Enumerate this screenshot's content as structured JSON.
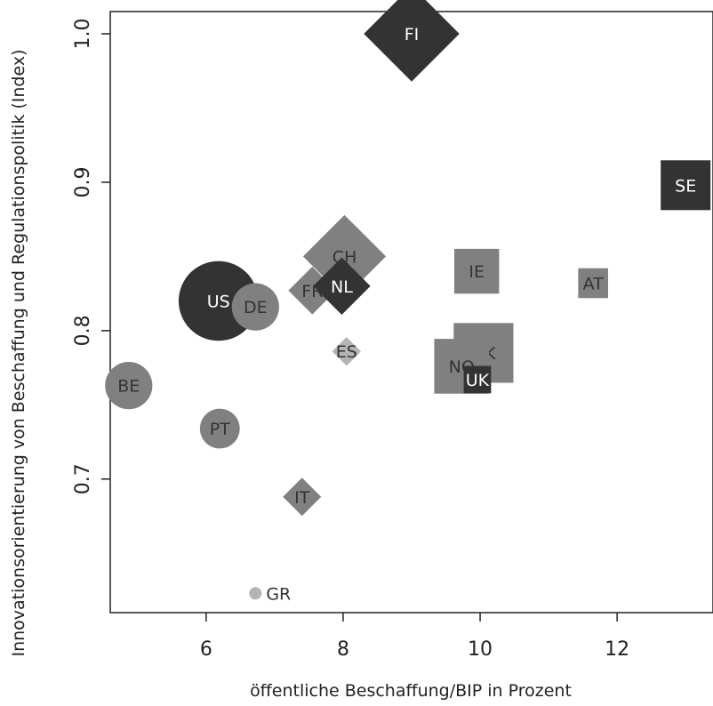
{
  "chart_data": {
    "type": "scatter",
    "title": "",
    "xlabel": "öffentliche Beschaffung/BIP in Prozent",
    "ylabel": "Innovationsorientierung von Beschaffung und Regulationspolitik (Index)",
    "xlim": [
      4.6,
      13.4
    ],
    "ylim": [
      0.61,
      1.015
    ],
    "xticks": [
      6,
      8,
      10,
      12
    ],
    "xtick_labels": [
      "6",
      "8",
      "10",
      "12"
    ],
    "yticks": [
      0.7,
      0.8,
      0.9,
      1.0
    ],
    "ytick_labels": [
      "0.7",
      "0.8",
      "0.9",
      "1.0"
    ],
    "grid": false,
    "colors": {
      "dark": "#333333",
      "mid": "#808080",
      "light": "#b4b4b4",
      "white": "#ffffff"
    },
    "points": [
      {
        "label": "FI",
        "x": 9.0,
        "y": 1.0,
        "shape": "diamond",
        "size": 1.5,
        "color": "dark",
        "text_color": "white"
      },
      {
        "label": "SE",
        "x": 13.0,
        "y": 0.898,
        "shape": "square",
        "size": 1.0,
        "color": "dark",
        "text_color": "white"
      },
      {
        "label": "CH",
        "x": 8.02,
        "y": 0.85,
        "shape": "diamond",
        "size": 1.3,
        "color": "mid",
        "text_color": "dark"
      },
      {
        "label": "FR",
        "x": 7.55,
        "y": 0.827,
        "shape": "diamond",
        "size": 0.75,
        "color": "mid",
        "text_color": "dark"
      },
      {
        "label": "NL",
        "x": 7.98,
        "y": 0.83,
        "shape": "diamond",
        "size": 0.9,
        "color": "dark",
        "text_color": "white"
      },
      {
        "label": "US",
        "x": 6.18,
        "y": 0.82,
        "shape": "circle",
        "size": 1.6,
        "color": "dark",
        "text_color": "white"
      },
      {
        "label": "DE",
        "x": 6.72,
        "y": 0.816,
        "shape": "circle",
        "size": 0.95,
        "color": "mid",
        "text_color": "dark"
      },
      {
        "label": "IE",
        "x": 9.95,
        "y": 0.84,
        "shape": "square",
        "size": 0.9,
        "color": "mid",
        "text_color": "dark"
      },
      {
        "label": "AT",
        "x": 11.65,
        "y": 0.832,
        "shape": "square",
        "size": 0.6,
        "color": "mid",
        "text_color": "dark"
      },
      {
        "label": "DK",
        "x": 10.05,
        "y": 0.785,
        "shape": "square",
        "size": 1.2,
        "color": "mid",
        "text_color": "dark"
      },
      {
        "label": "NO",
        "x": 9.73,
        "y": 0.776,
        "shape": "square",
        "size": 1.1,
        "color": "mid",
        "text_color": "dark"
      },
      {
        "label": "UK",
        "x": 9.96,
        "y": 0.767,
        "shape": "square",
        "size": 0.55,
        "color": "dark",
        "text_color": "white"
      },
      {
        "label": "ES",
        "x": 8.05,
        "y": 0.786,
        "shape": "diamond",
        "size": 0.45,
        "color": "light",
        "text_color": "dark"
      },
      {
        "label": "BE",
        "x": 4.87,
        "y": 0.763,
        "shape": "circle",
        "size": 0.95,
        "color": "mid",
        "text_color": "dark"
      },
      {
        "label": "PT",
        "x": 6.2,
        "y": 0.734,
        "shape": "circle",
        "size": 0.8,
        "color": "mid",
        "text_color": "dark"
      },
      {
        "label": "IT",
        "x": 7.4,
        "y": 0.688,
        "shape": "diamond",
        "size": 0.6,
        "color": "mid",
        "text_color": "dark"
      },
      {
        "label": "GR",
        "x": 6.72,
        "y": 0.623,
        "shape": "circle",
        "size": 0.25,
        "color": "light",
        "text_color": "dark",
        "label_outside": true
      }
    ]
  }
}
